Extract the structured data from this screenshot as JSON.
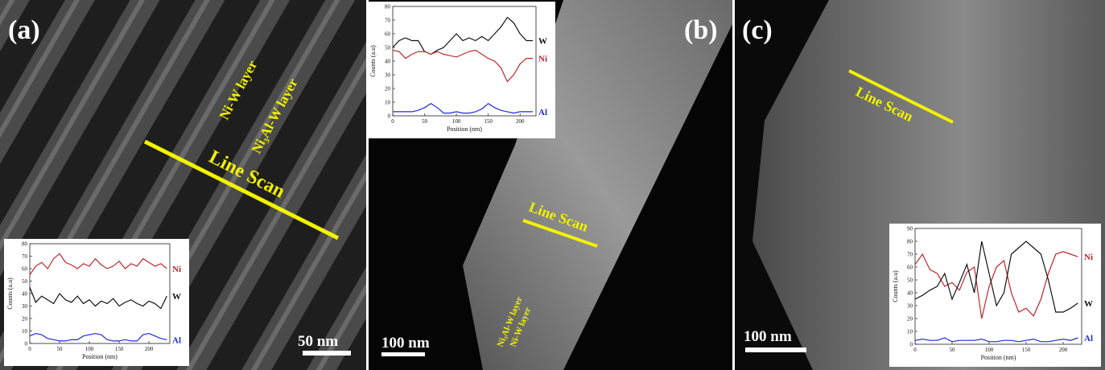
{
  "panels": [
    {
      "label": "(a)",
      "layer_1": "Ni-W layer",
      "layer_2": "Ni₃Al-W layer",
      "line_scan": "Line Scan",
      "scale_bar": "50 nm"
    },
    {
      "label": "(b)",
      "line_scan": "Line Scan",
      "scale_bar": "100 nm",
      "layer_1": "Ni₃Al-W layer",
      "layer_2": "Ni-W layer"
    },
    {
      "label": "(c)",
      "line_scan": "Line Scan",
      "scale_bar": "100 nm"
    }
  ],
  "chart_data": [
    {
      "type": "line",
      "x_label": "Position (nm)",
      "y_label": "Counts (a.u)",
      "x": [
        0,
        10,
        20,
        30,
        40,
        50,
        60,
        70,
        80,
        90,
        100,
        110,
        120,
        130,
        140,
        150,
        160,
        170,
        180,
        190,
        200,
        210,
        220,
        230
      ],
      "xlim": [
        0,
        235
      ],
      "xticks": [
        0,
        50,
        100,
        150,
        200
      ],
      "ylim": [
        0,
        80
      ],
      "yticks": [
        0,
        10,
        20,
        30,
        40,
        50,
        60,
        70,
        80
      ],
      "series": [
        {
          "name": "Ni",
          "color": "#c0262d",
          "values": [
            55,
            62,
            65,
            60,
            68,
            72,
            65,
            63,
            60,
            64,
            62,
            68,
            63,
            60,
            62,
            66,
            60,
            64,
            62,
            68,
            65,
            62,
            64,
            60
          ]
        },
        {
          "name": "W",
          "color": "#111111",
          "values": [
            45,
            33,
            38,
            35,
            32,
            40,
            35,
            33,
            38,
            32,
            35,
            30,
            34,
            32,
            36,
            30,
            33,
            35,
            32,
            30,
            34,
            32,
            28,
            38
          ]
        },
        {
          "name": "Al",
          "color": "#1f2bd6",
          "values": [
            6,
            8,
            7,
            4,
            3,
            2,
            2,
            3,
            3,
            6,
            7,
            8,
            7,
            3,
            2,
            2,
            3,
            2,
            2,
            7,
            8,
            6,
            4,
            3
          ]
        }
      ]
    },
    {
      "type": "line",
      "x_label": "Position (nm)",
      "y_label": "Counts (a.u)",
      "x": [
        0,
        10,
        20,
        30,
        40,
        50,
        60,
        70,
        80,
        90,
        100,
        110,
        120,
        130,
        140,
        150,
        160,
        170,
        180,
        190,
        200,
        210,
        220
      ],
      "xlim": [
        0,
        225
      ],
      "xticks": [
        0,
        50,
        100,
        150,
        200
      ],
      "ylim": [
        0,
        80
      ],
      "yticks": [
        0,
        10,
        20,
        30,
        40,
        50,
        60,
        70,
        80
      ],
      "series": [
        {
          "name": "W",
          "color": "#111111",
          "values": [
            50,
            55,
            57,
            55,
            55,
            47,
            45,
            48,
            50,
            55,
            60,
            55,
            57,
            55,
            58,
            55,
            60,
            65,
            72,
            68,
            60,
            55,
            55
          ]
        },
        {
          "name": "Ni",
          "color": "#c0262d",
          "values": [
            48,
            47,
            42,
            45,
            47,
            47,
            45,
            47,
            45,
            44,
            43,
            45,
            47,
            48,
            45,
            42,
            40,
            35,
            25,
            30,
            38,
            42,
            42
          ]
        },
        {
          "name": "Al",
          "color": "#1f2bd6",
          "values": [
            3,
            3,
            3,
            3,
            4,
            6,
            9,
            6,
            2,
            2,
            3,
            2,
            2,
            3,
            5,
            9,
            6,
            4,
            3,
            2,
            3,
            3,
            3
          ]
        }
      ]
    },
    {
      "type": "line",
      "x_label": "Position (nm)",
      "y_label": "Counts (a.u)",
      "x": [
        0,
        10,
        20,
        30,
        40,
        50,
        60,
        70,
        80,
        90,
        100,
        110,
        120,
        130,
        140,
        150,
        160,
        170,
        180,
        190,
        200,
        210,
        220
      ],
      "xlim": [
        0,
        225
      ],
      "xticks": [
        0,
        50,
        100,
        150,
        200
      ],
      "ylim": [
        0,
        90
      ],
      "yticks": [
        0,
        10,
        20,
        30,
        40,
        50,
        60,
        70,
        80,
        90
      ],
      "series": [
        {
          "name": "Ni",
          "color": "#c0262d",
          "values": [
            62,
            70,
            58,
            55,
            45,
            48,
            42,
            56,
            60,
            20,
            45,
            60,
            65,
            40,
            25,
            28,
            22,
            35,
            55,
            70,
            72,
            70,
            68
          ]
        },
        {
          "name": "W",
          "color": "#111111",
          "values": [
            35,
            38,
            42,
            45,
            55,
            35,
            48,
            62,
            40,
            80,
            55,
            30,
            40,
            70,
            75,
            80,
            75,
            70,
            50,
            25,
            25,
            28,
            32
          ]
        },
        {
          "name": "Al",
          "color": "#1f2bd6",
          "values": [
            3,
            4,
            3,
            3,
            5,
            2,
            3,
            3,
            3,
            4,
            2,
            2,
            3,
            3,
            2,
            3,
            4,
            2,
            2,
            3,
            4,
            3,
            5
          ]
        }
      ]
    }
  ]
}
